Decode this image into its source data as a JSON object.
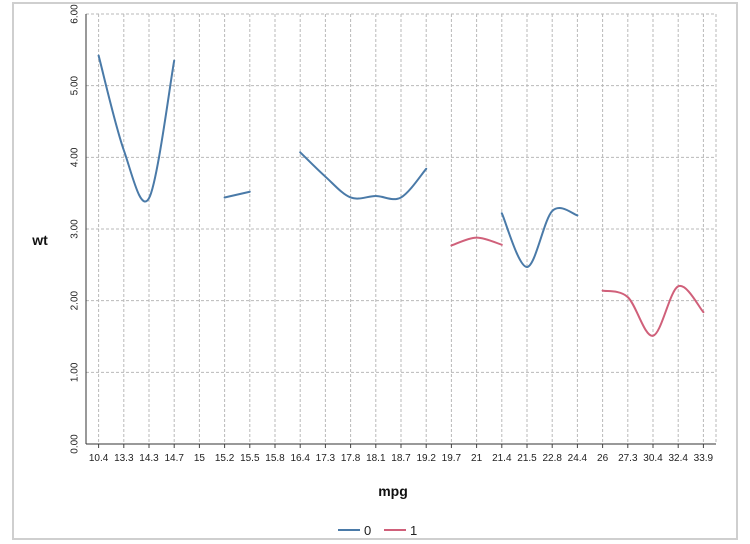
{
  "chart_data": {
    "type": "line",
    "title": "",
    "xlabel": "mpg",
    "ylabel": "wt",
    "ylim": [
      0,
      6
    ],
    "yticks": [
      "0.00",
      "1.00",
      "2.00",
      "3.00",
      "4.00",
      "5.00",
      "6.00"
    ],
    "categories": [
      "10.4",
      "13.3",
      "14.3",
      "14.7",
      "15",
      "15.2",
      "15.5",
      "15.8",
      "16.4",
      "17.3",
      "17.8",
      "18.1",
      "18.7",
      "19.2",
      "19.7",
      "21",
      "21.4",
      "21.5",
      "22.8",
      "24.4",
      "26",
      "27.3",
      "30.4",
      "32.4",
      "33.9"
    ],
    "grid": true,
    "legend_position": "bottom",
    "series": [
      {
        "name": "0",
        "color": "#4a7aa8",
        "segments": [
          [
            [
              "10.4",
              5.42
            ],
            [
              "13.3",
              4.1
            ],
            [
              "14.3",
              3.43
            ],
            [
              "14.7",
              5.35
            ]
          ],
          [
            [
              "15.2",
              3.44
            ],
            [
              "15.5",
              3.52
            ]
          ],
          [
            [
              "16.4",
              4.07
            ],
            [
              "17.3",
              3.73
            ],
            [
              "17.8",
              3.44
            ],
            [
              "18.1",
              3.46
            ],
            [
              "18.7",
              3.44
            ],
            [
              "19.2",
              3.84
            ]
          ],
          [
            [
              "21.4",
              3.22
            ],
            [
              "21.5",
              2.47
            ],
            [
              "22.8",
              3.25
            ],
            [
              "24.4",
              3.19
            ]
          ]
        ]
      },
      {
        "name": "1",
        "color": "#d0607a",
        "segments": [
          [
            [
              "19.7",
              2.77
            ],
            [
              "21",
              2.88
            ],
            [
              "21.4",
              2.78
            ]
          ],
          [
            [
              "26",
              2.14
            ],
            [
              "27.3",
              2.05
            ],
            [
              "30.4",
              1.51
            ],
            [
              "32.4",
              2.2
            ],
            [
              "33.9",
              1.84
            ]
          ]
        ]
      }
    ]
  }
}
